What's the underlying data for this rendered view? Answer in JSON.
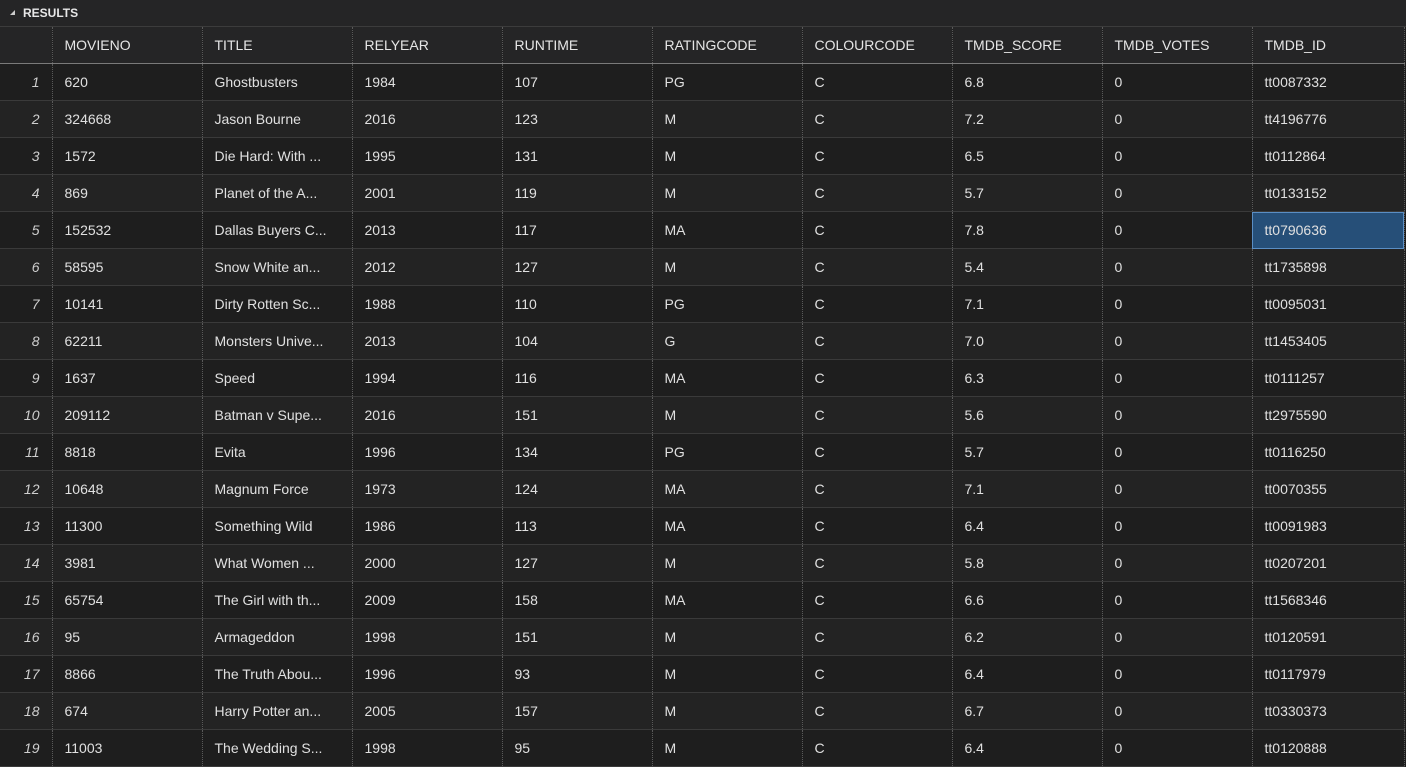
{
  "panel": {
    "title": "RESULTS"
  },
  "columns": [
    "",
    "MOVIENO",
    "TITLE",
    "RELYEAR",
    "RUNTIME",
    "RATINGCODE",
    "COLOURCODE",
    "TMDB_SCORE",
    "TMDB_VOTES",
    "TMDB_ID"
  ],
  "rows": [
    [
      "1",
      "620",
      "Ghostbusters",
      "1984",
      "107",
      "PG",
      "C",
      "6.8",
      "0",
      "tt0087332"
    ],
    [
      "2",
      "324668",
      "Jason Bourne",
      "2016",
      "123",
      "M",
      "C",
      "7.2",
      "0",
      "tt4196776"
    ],
    [
      "3",
      "1572",
      "Die Hard: With ...",
      "1995",
      "131",
      "M",
      "C",
      "6.5",
      "0",
      "tt0112864"
    ],
    [
      "4",
      "869",
      "Planet of the A...",
      "2001",
      "119",
      "M",
      "C",
      "5.7",
      "0",
      "tt0133152"
    ],
    [
      "5",
      "152532",
      "Dallas Buyers C...",
      "2013",
      "117",
      "MA",
      "C",
      "7.8",
      "0",
      "tt0790636"
    ],
    [
      "6",
      "58595",
      "Snow White an...",
      "2012",
      "127",
      "M",
      "C",
      "5.4",
      "0",
      "tt1735898"
    ],
    [
      "7",
      "10141",
      "Dirty Rotten Sc...",
      "1988",
      "110",
      "PG",
      "C",
      "7.1",
      "0",
      "tt0095031"
    ],
    [
      "8",
      "62211",
      "Monsters Unive...",
      "2013",
      "104",
      "G",
      "C",
      "7.0",
      "0",
      "tt1453405"
    ],
    [
      "9",
      "1637",
      "Speed",
      "1994",
      "116",
      "MA",
      "C",
      "6.3",
      "0",
      "tt0111257"
    ],
    [
      "10",
      "209112",
      "Batman v Supe...",
      "2016",
      "151",
      "M",
      "C",
      "5.6",
      "0",
      "tt2975590"
    ],
    [
      "11",
      "8818",
      "Evita",
      "1996",
      "134",
      "PG",
      "C",
      "5.7",
      "0",
      "tt0116250"
    ],
    [
      "12",
      "10648",
      "Magnum Force",
      "1973",
      "124",
      "MA",
      "C",
      "7.1",
      "0",
      "tt0070355"
    ],
    [
      "13",
      "11300",
      "Something Wild",
      "1986",
      "113",
      "MA",
      "C",
      "6.4",
      "0",
      "tt0091983"
    ],
    [
      "14",
      "3981",
      "What Women ...",
      "2000",
      "127",
      "M",
      "C",
      "5.8",
      "0",
      "tt0207201"
    ],
    [
      "15",
      "65754",
      "The Girl with th...",
      "2009",
      "158",
      "MA",
      "C",
      "6.6",
      "0",
      "tt1568346"
    ],
    [
      "16",
      "95",
      "Armageddon",
      "1998",
      "151",
      "M",
      "C",
      "6.2",
      "0",
      "tt0120591"
    ],
    [
      "17",
      "8866",
      "The Truth Abou...",
      "1996",
      "93",
      "M",
      "C",
      "6.4",
      "0",
      "tt0117979"
    ],
    [
      "18",
      "674",
      "Harry Potter an...",
      "2005",
      "157",
      "M",
      "C",
      "6.7",
      "0",
      "tt0330373"
    ],
    [
      "19",
      "11003",
      "The Wedding S...",
      "1998",
      "95",
      "M",
      "C",
      "6.4",
      "0",
      "tt0120888"
    ]
  ],
  "selected_cell": {
    "row": 4,
    "col": 9
  }
}
